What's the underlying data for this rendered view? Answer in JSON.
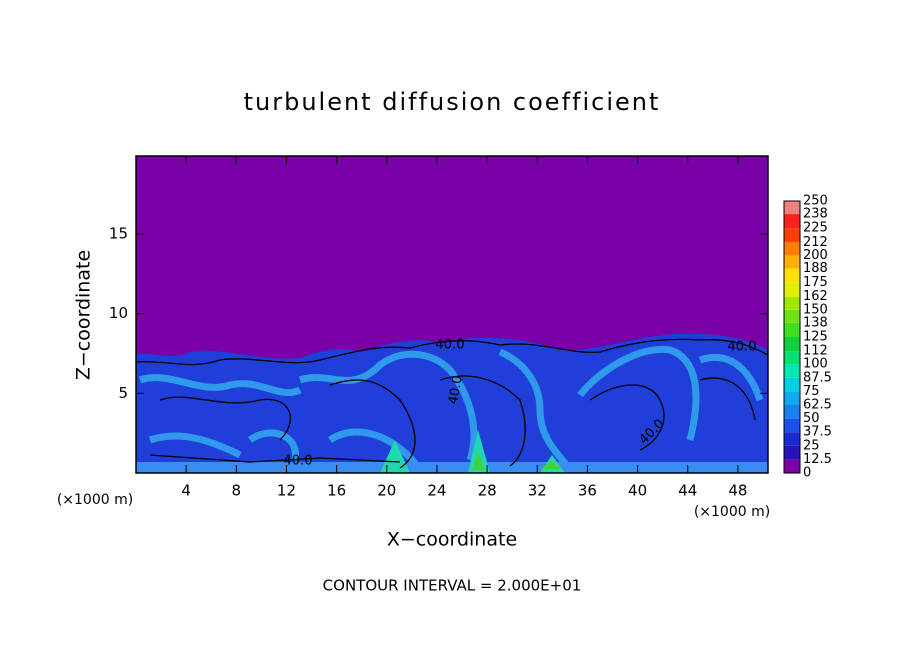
{
  "chart_data": {
    "type": "contour",
    "title": "turbulent diffusion coefficient",
    "x_label": "X−coordinate",
    "y_label": "Z−coordinate",
    "x_unit_left": "(×1000 m)",
    "x_unit_right": "(×1000 m)",
    "footnote": "CONTOUR INTERVAL = 2.000E+01",
    "contour_labels": [
      "40.0",
      "40.0",
      "40.0",
      "40.0",
      "40.0"
    ],
    "xlim": [
      0,
      50.4
    ],
    "xticks": [
      4,
      8,
      12,
      16,
      20,
      24,
      28,
      32,
      36,
      40,
      44,
      48
    ],
    "ylim": [
      0,
      19.9
    ],
    "yticks": [
      5,
      10,
      15
    ],
    "colorbar": {
      "levels": [
        0,
        12.5,
        25,
        37.5,
        50,
        62.5,
        75,
        87.5,
        100,
        112,
        125,
        138,
        150,
        162,
        175,
        188,
        200,
        212,
        225,
        238,
        250
      ],
      "colors": [
        "#7a00a8",
        "#2a10b8",
        "#1a2ad0",
        "#1a50e8",
        "#1a80f0",
        "#10a8f0",
        "#00d0e0",
        "#00e8b0",
        "#00e070",
        "#10d040",
        "#40e020",
        "#70e010",
        "#a0e800",
        "#e0f000",
        "#ffe000",
        "#ffb000",
        "#ff8000",
        "#ff4000",
        "#ff2020",
        "#f08080"
      ]
    }
  }
}
